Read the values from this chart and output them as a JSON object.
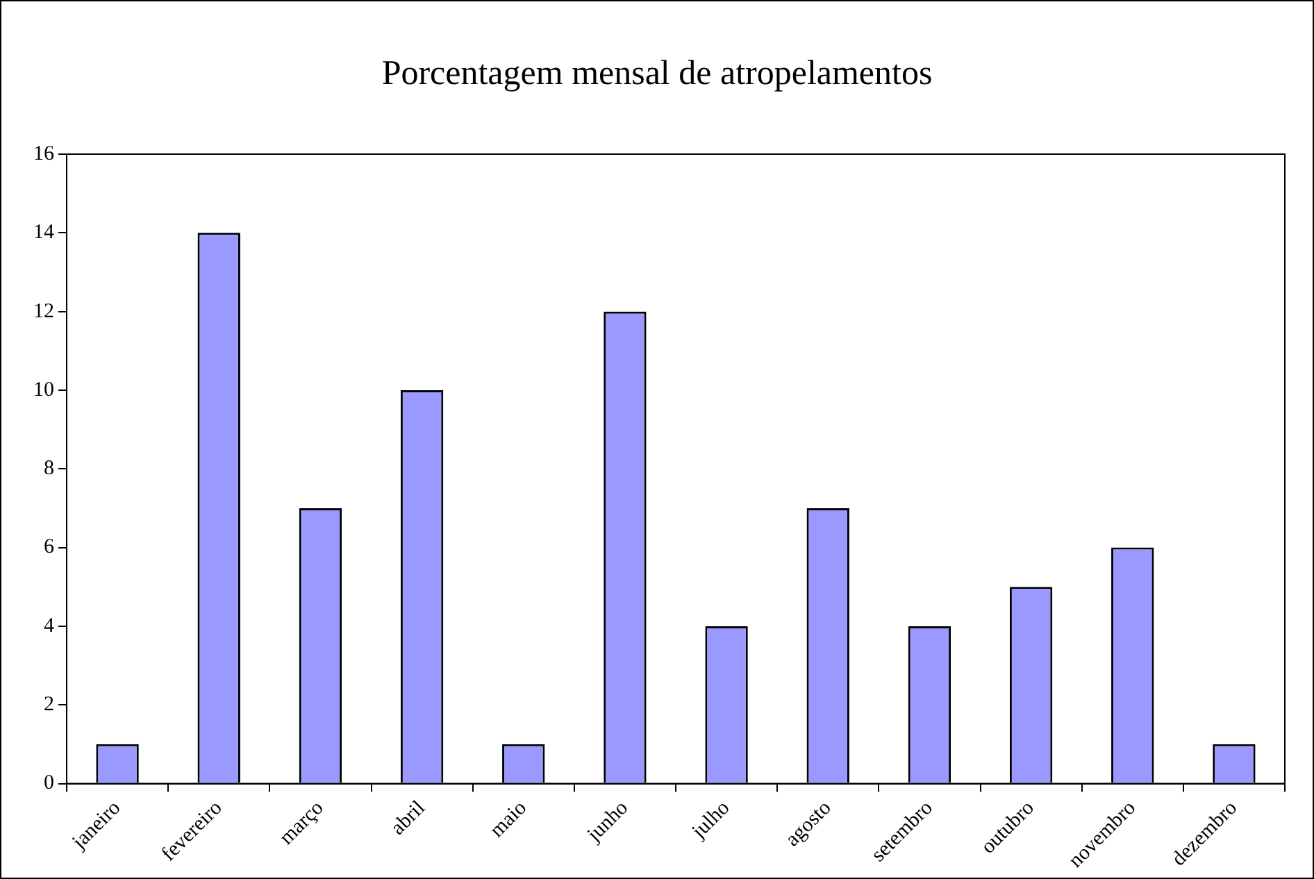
{
  "chart_data": {
    "type": "bar",
    "title": "Porcentagem mensal de atropelamentos",
    "categories": [
      "janeiro",
      "fevereiro",
      "março",
      "abril",
      "maio",
      "junho",
      "julho",
      "agosto",
      "setembro",
      "outubro",
      "novembro",
      "dezembro"
    ],
    "values": [
      1,
      14,
      7,
      10,
      1,
      12,
      4,
      7,
      4,
      5,
      6,
      1
    ],
    "color": "#9999ff",
    "ylim": [
      0,
      16
    ],
    "yticks": [
      0,
      2,
      4,
      6,
      8,
      10,
      12,
      14,
      16
    ],
    "grid": false,
    "legend": false
  }
}
